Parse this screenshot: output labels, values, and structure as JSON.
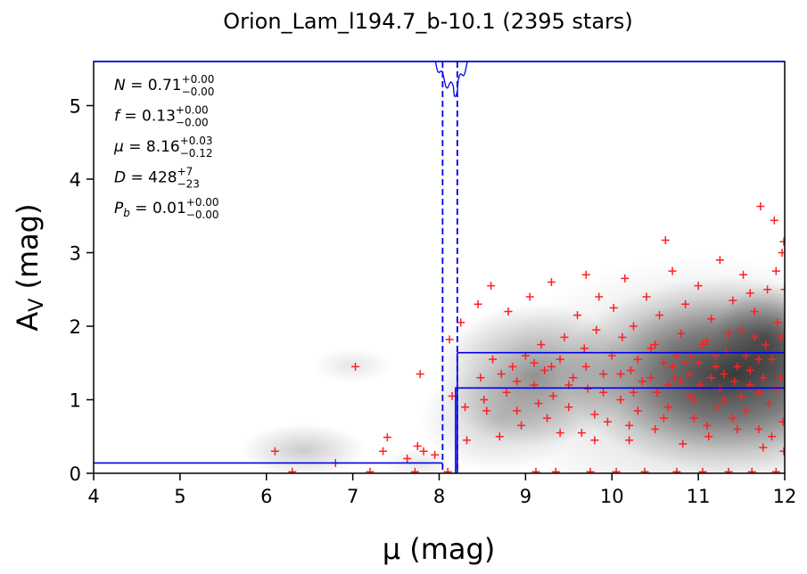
{
  "chart_data": {
    "type": "scatter",
    "title": "Orion_Lam_l194.7_b-10.1 (2395 stars)",
    "xlabel": "μ (mag)",
    "ylabel": "A_V (mag)",
    "ylabel_main": "A",
    "ylabel_sub": "V",
    "ylabel_unit": " (mag)",
    "xlim": [
      4,
      12
    ],
    "ylim": [
      0,
      5.6
    ],
    "x_ticks": [
      "4",
      "5",
      "6",
      "7",
      "8",
      "9",
      "10",
      "11",
      "12"
    ],
    "y_ticks": [
      "0",
      "1",
      "2",
      "3",
      "4",
      "5"
    ],
    "grid": false,
    "colors": {
      "points": "#ff2020",
      "model": "#0000ee",
      "density": "#000000"
    },
    "annotations": [
      {
        "label": "N",
        "value": "0.71",
        "sup": "+0.00",
        "sub": "−0.00"
      },
      {
        "label": "f",
        "value": "0.13",
        "sup": "+0.00",
        "sub": "−0.00"
      },
      {
        "label": "μ",
        "value": "8.16",
        "sup": "+0.03",
        "sub": "−0.12"
      },
      {
        "label": "D",
        "value": "428",
        "sup": "+7",
        "sub": "−23"
      },
      {
        "label": "P",
        "label_sub": "b",
        "value": "0.01",
        "sup": "+0.00",
        "sub": "−0.00"
      }
    ],
    "model": {
      "foreground_extinction": 0.14,
      "step_distance_modulus": 8.19,
      "cloud_extinction_lower": 1.16,
      "cloud_extinction_upper": 1.64,
      "distance_modulus_low": 8.04,
      "distance_modulus_high": 8.21
    },
    "points": [
      [
        6.1,
        0.3
      ],
      [
        6.3,
        0.02
      ],
      [
        6.8,
        0.14
      ],
      [
        7.03,
        1.45
      ],
      [
        7.2,
        0.02
      ],
      [
        7.35,
        0.3
      ],
      [
        7.4,
        0.49
      ],
      [
        7.63,
        0.2
      ],
      [
        7.72,
        0.02
      ],
      [
        7.78,
        1.35
      ],
      [
        7.75,
        0.37
      ],
      [
        7.82,
        0.3
      ],
      [
        7.95,
        0.25
      ],
      [
        8.1,
        0.02
      ],
      [
        8.12,
        1.82
      ],
      [
        8.15,
        1.05
      ],
      [
        8.25,
        2.05
      ],
      [
        8.3,
        0.9
      ],
      [
        8.32,
        0.45
      ],
      [
        8.45,
        2.3
      ],
      [
        8.48,
        1.3
      ],
      [
        8.52,
        1.0
      ],
      [
        8.55,
        0.85
      ],
      [
        8.6,
        2.55
      ],
      [
        8.62,
        1.55
      ],
      [
        8.7,
        0.5
      ],
      [
        8.72,
        1.35
      ],
      [
        8.78,
        1.1
      ],
      [
        8.8,
        2.2
      ],
      [
        8.85,
        1.45
      ],
      [
        8.9,
        0.85
      ],
      [
        8.95,
        0.65
      ],
      [
        9.0,
        1.6
      ],
      [
        9.05,
        2.4
      ],
      [
        9.1,
        1.2
      ],
      [
        9.12,
        0.02
      ],
      [
        9.15,
        0.95
      ],
      [
        9.18,
        1.75
      ],
      [
        9.22,
        1.4
      ],
      [
        9.25,
        0.75
      ],
      [
        9.3,
        2.6
      ],
      [
        9.32,
        1.05
      ],
      [
        9.35,
        0.02
      ],
      [
        9.4,
        1.55
      ],
      [
        9.45,
        1.85
      ],
      [
        9.5,
        0.9
      ],
      [
        9.55,
        1.3
      ],
      [
        9.6,
        2.15
      ],
      [
        9.65,
        0.55
      ],
      [
        9.68,
        1.7
      ],
      [
        9.7,
        2.7
      ],
      [
        9.72,
        1.15
      ],
      [
        9.75,
        0.02
      ],
      [
        9.8,
        0.8
      ],
      [
        9.82,
        1.95
      ],
      [
        9.85,
        2.4
      ],
      [
        9.9,
        1.35
      ],
      [
        9.95,
        0.7
      ],
      [
        10.0,
        1.6
      ],
      [
        10.02,
        2.25
      ],
      [
        10.05,
        0.02
      ],
      [
        10.1,
        1.0
      ],
      [
        10.12,
        1.85
      ],
      [
        10.15,
        2.65
      ],
      [
        10.2,
        0.45
      ],
      [
        10.22,
        1.4
      ],
      [
        10.25,
        2.0
      ],
      [
        10.3,
        0.85
      ],
      [
        10.35,
        1.25
      ],
      [
        10.38,
        0.02
      ],
      [
        10.4,
        2.4
      ],
      [
        10.45,
        1.7
      ],
      [
        10.5,
        0.6
      ],
      [
        10.52,
        1.1
      ],
      [
        10.55,
        2.15
      ],
      [
        10.6,
        1.5
      ],
      [
        10.62,
        3.17
      ],
      [
        10.65,
        0.9
      ],
      [
        10.7,
        2.75
      ],
      [
        10.72,
        1.3
      ],
      [
        10.75,
        0.02
      ],
      [
        10.8,
        1.9
      ],
      [
        10.82,
        0.4
      ],
      [
        10.85,
        2.3
      ],
      [
        10.9,
        1.05
      ],
      [
        10.92,
        1.6
      ],
      [
        10.95,
        0.75
      ],
      [
        11.0,
        2.55
      ],
      [
        11.02,
        1.2
      ],
      [
        11.05,
        0.02
      ],
      [
        11.1,
        1.8
      ],
      [
        11.12,
        0.5
      ],
      [
        11.15,
        2.1
      ],
      [
        11.2,
        1.45
      ],
      [
        11.22,
        0.9
      ],
      [
        11.25,
        2.9
      ],
      [
        11.3,
        1.0
      ],
      [
        11.32,
        1.65
      ],
      [
        11.35,
        0.02
      ],
      [
        11.4,
        2.35
      ],
      [
        11.42,
        1.25
      ],
      [
        11.45,
        0.6
      ],
      [
        11.5,
        1.95
      ],
      [
        11.52,
        2.7
      ],
      [
        11.55,
        0.85
      ],
      [
        11.6,
        1.4
      ],
      [
        11.62,
        0.02
      ],
      [
        11.65,
        2.2
      ],
      [
        11.7,
        1.1
      ],
      [
        11.72,
        3.63
      ],
      [
        11.75,
        0.35
      ],
      [
        11.78,
        1.75
      ],
      [
        11.8,
        2.5
      ],
      [
        11.82,
        0.95
      ],
      [
        11.85,
        1.55
      ],
      [
        11.88,
        3.44
      ],
      [
        11.9,
        0.02
      ],
      [
        11.92,
        2.05
      ],
      [
        11.95,
        1.3
      ],
      [
        11.97,
        3.0
      ],
      [
        11.98,
        0.7
      ],
      [
        11.6,
        1.2
      ],
      [
        11.3,
        1.35
      ],
      [
        11.0,
        1.5
      ],
      [
        10.8,
        1.25
      ],
      [
        11.5,
        1.05
      ],
      [
        11.9,
        1.15
      ],
      [
        11.7,
        1.55
      ],
      [
        10.9,
        1.35
      ],
      [
        11.2,
        1.6
      ],
      [
        10.7,
        1.45
      ],
      [
        11.4,
        0.75
      ],
      [
        11.85,
        0.5
      ],
      [
        10.5,
        1.75
      ],
      [
        10.3,
        1.55
      ],
      [
        10.1,
        1.35
      ],
      [
        9.9,
        1.1
      ],
      [
        9.7,
        1.45
      ],
      [
        9.5,
        1.2
      ],
      [
        9.3,
        1.45
      ],
      [
        9.1,
        1.5
      ],
      [
        8.9,
        1.25
      ],
      [
        11.95,
        1.85
      ],
      [
        11.65,
        1.85
      ],
      [
        11.35,
        1.9
      ],
      [
        11.05,
        1.75
      ],
      [
        10.75,
        1.6
      ],
      [
        10.45,
        1.3
      ],
      [
        10.25,
        1.1
      ],
      [
        11.55,
        1.6
      ],
      [
        11.25,
        1.15
      ],
      [
        10.95,
        1.0
      ],
      [
        10.65,
        1.2
      ],
      [
        11.75,
        1.3
      ],
      [
        11.45,
        1.45
      ],
      [
        11.15,
        1.3
      ],
      [
        10.85,
        1.5
      ],
      [
        11.99,
        0.3
      ],
      [
        11.7,
        0.6
      ],
      [
        11.1,
        0.65
      ],
      [
        10.6,
        0.75
      ],
      [
        10.2,
        0.65
      ],
      [
        9.8,
        0.45
      ],
      [
        9.4,
        0.55
      ],
      [
        12.0,
        2.5
      ],
      [
        11.99,
        3.15
      ],
      [
        11.9,
        2.75
      ],
      [
        11.6,
        2.45
      ]
    ]
  }
}
